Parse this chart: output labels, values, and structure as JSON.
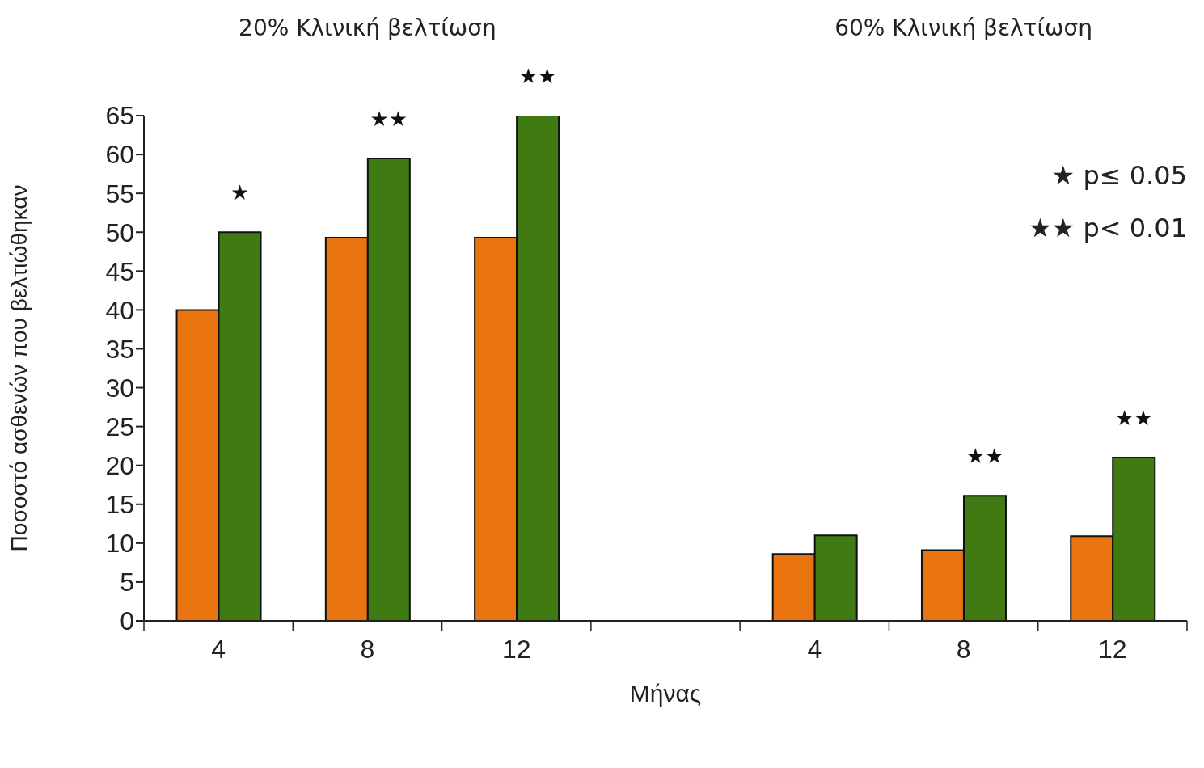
{
  "chart_data": {
    "type": "bar",
    "xlabel": "Μήνας",
    "ylabel": "Ποσοστό ασθενών που βελτιώθηκαν",
    "categories": [
      "4",
      "8",
      "12",
      null,
      "4",
      "8",
      "12"
    ],
    "series": [
      {
        "color": "#e8730f",
        "values": [
          40,
          49.3,
          49.3,
          null,
          8.6,
          9.1,
          10.9
        ]
      },
      {
        "color": "#3f7a12",
        "values": [
          50,
          59.5,
          65,
          null,
          11,
          16.1,
          21
        ],
        "value_labels": [
          "★",
          "★★",
          "★★",
          null,
          null,
          "★★",
          "★★"
        ]
      }
    ],
    "ylim": [
      0,
      65
    ],
    "yticks": [
      0,
      5,
      10,
      15,
      20,
      25,
      30,
      35,
      40,
      45,
      50,
      55,
      60,
      65
    ],
    "annotations": [
      "20% Κλινική βελτίωση",
      "60% Κλινική βελτίωση",
      "★ p≤ 0.05",
      "★★ p< 0.01"
    ]
  }
}
